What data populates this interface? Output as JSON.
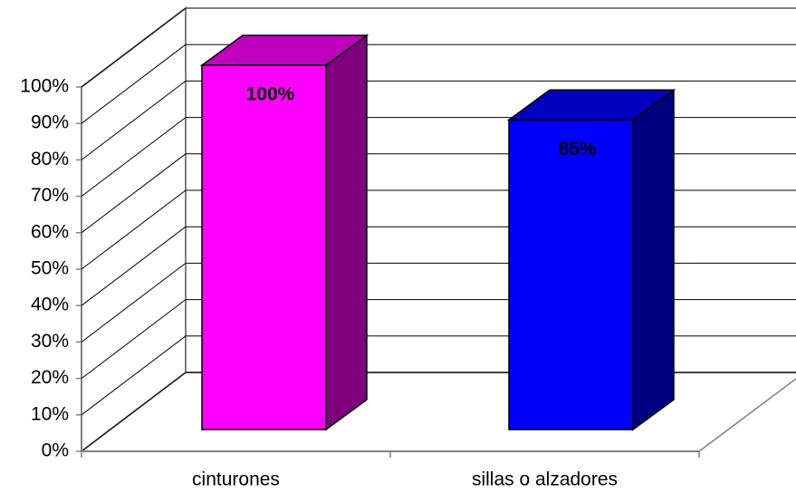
{
  "chart_data": {
    "type": "bar3d",
    "categories": [
      "cinturones",
      "sillas o alzadores"
    ],
    "values": [
      100,
      85
    ],
    "value_labels": [
      "100%",
      "85%"
    ],
    "colors": [
      "#ff00ff",
      "#0000ff"
    ],
    "ylim": [
      0,
      100
    ],
    "yticks": [
      {
        "value": 0,
        "label": "0%"
      },
      {
        "value": 10,
        "label": "10%"
      },
      {
        "value": 20,
        "label": "20%"
      },
      {
        "value": 30,
        "label": "30%"
      },
      {
        "value": 40,
        "label": "40%"
      },
      {
        "value": 50,
        "label": "50%"
      },
      {
        "value": 60,
        "label": "60%"
      },
      {
        "value": 70,
        "label": "70%"
      },
      {
        "value": 80,
        "label": "80%"
      },
      {
        "value": 90,
        "label": "90%"
      },
      {
        "value": 100,
        "label": "100%"
      }
    ],
    "grid": true
  }
}
